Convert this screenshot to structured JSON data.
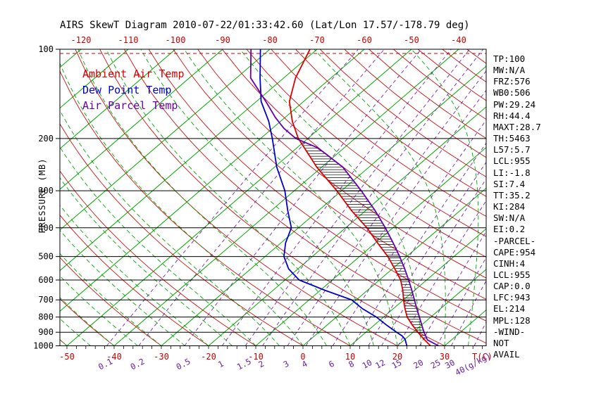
{
  "title": "AIRS SkewT Diagram 2010-07-22/01:33:42.60 (Lat/Lon 17.57/-178.79 deg)",
  "legend": [
    {
      "label": "Ambient Air Temp",
      "color": "#dd0000"
    },
    {
      "label": "Dew Point Temp",
      "color": "#0000cc"
    },
    {
      "label": "Air Parcel Temp",
      "color": "#6600aa"
    }
  ],
  "stats": [
    "TP:100",
    "MW:N/A",
    "FRZ:576",
    "WB0:506",
    "PW:29.24",
    "RH:44.4",
    "MAXT:28.7",
    "TH:5463",
    "L57:5.7",
    "LCL:955",
    "LI:-1.8",
    "SI:7.4",
    "TT:35.2",
    "KI:284",
    "SW:N/A",
    "EI:0.2",
    "-PARCEL-",
    "CAPE:954",
    "CINH:4",
    "LCL:955",
    "CAP:0.0",
    "LFC:943",
    "EL:214",
    "MPL:128",
    "-WIND-",
    "NOT",
    "AVAIL"
  ],
  "chart_data": {
    "type": "skewt",
    "pressure_axis": {
      "label": "PRESSURE (MB)",
      "ticks": [
        100,
        200,
        300,
        400,
        500,
        600,
        700,
        800,
        900,
        1000
      ],
      "range": [
        100,
        1000
      ],
      "scale": "log"
    },
    "temp_axis": {
      "label": "T(C)",
      "top_ticks": [
        -120,
        -110,
        -100,
        -90,
        -80,
        -70,
        -60,
        -50,
        -40
      ],
      "bottom_ticks": [
        -50,
        -40,
        -30,
        -20,
        -10,
        0,
        10,
        20,
        30
      ],
      "skewed": true
    },
    "mixing_ratio_axis": {
      "unit": "(g/kg)",
      "ticks": [
        0.1,
        0.2,
        0.5,
        1,
        1.5,
        2,
        3,
        4,
        6,
        8,
        10,
        12,
        15,
        20,
        25,
        30,
        40
      ]
    },
    "grid": {
      "isotherm_step_c": 10,
      "dry_adiabat_theta_c": {
        "min": -60,
        "max": 200,
        "step": 10
      },
      "moist_adiabat_start_c": {
        "min": -60,
        "max": 40,
        "step": 5
      }
    },
    "colors": {
      "isotherm": "#00a800",
      "moist_adiabat": "#00a800",
      "dry_adiabat": "#cc1111",
      "mixing_ratio": "#7a22b2",
      "pressure_line": "#000000",
      "top_dashed_line": "#cc0000",
      "hatch": "#000000",
      "axis_red": "#cc0000",
      "axis_violet": "#6a1fa0"
    },
    "series": [
      {
        "name": "Ambient Air Temp",
        "color": "#dd0000",
        "points": [
          [
            1000,
            27
          ],
          [
            950,
            24
          ],
          [
            925,
            22.5
          ],
          [
            900,
            21
          ],
          [
            850,
            18
          ],
          [
            800,
            15
          ],
          [
            750,
            12.5
          ],
          [
            700,
            10
          ],
          [
            650,
            7.5
          ],
          [
            600,
            4.5
          ],
          [
            550,
            0.5
          ],
          [
            500,
            -4
          ],
          [
            450,
            -9.5
          ],
          [
            400,
            -15.5
          ],
          [
            350,
            -23
          ],
          [
            300,
            -31
          ],
          [
            250,
            -41
          ],
          [
            200,
            -52
          ],
          [
            175,
            -57.5
          ],
          [
            150,
            -63
          ],
          [
            125,
            -67.5
          ],
          [
            100,
            -71.5
          ]
        ]
      },
      {
        "name": "Dew Point Temp",
        "color": "#0000cc",
        "points": [
          [
            1000,
            22
          ],
          [
            950,
            20
          ],
          [
            925,
            18.5
          ],
          [
            900,
            16.5
          ],
          [
            850,
            12.5
          ],
          [
            800,
            8.5
          ],
          [
            750,
            3.5
          ],
          [
            700,
            -1
          ],
          [
            650,
            -9
          ],
          [
            600,
            -17
          ],
          [
            550,
            -22
          ],
          [
            500,
            -26
          ],
          [
            450,
            -29
          ],
          [
            400,
            -31.5
          ],
          [
            350,
            -36.5
          ],
          [
            300,
            -42
          ],
          [
            250,
            -49.5
          ],
          [
            200,
            -57.5
          ],
          [
            175,
            -62.5
          ],
          [
            150,
            -69
          ],
          [
            125,
            -75
          ],
          [
            100,
            -82
          ]
        ]
      },
      {
        "name": "Air Parcel Temp",
        "color": "#6600aa",
        "points": [
          [
            1000,
            28.7
          ],
          [
            955,
            24.9
          ],
          [
            900,
            22.3
          ],
          [
            850,
            20
          ],
          [
            800,
            17.6
          ],
          [
            750,
            15
          ],
          [
            700,
            12.3
          ],
          [
            650,
            9.4
          ],
          [
            600,
            6.2
          ],
          [
            550,
            2.6
          ],
          [
            500,
            -1.5
          ],
          [
            450,
            -6.2
          ],
          [
            400,
            -11.6
          ],
          [
            350,
            -18
          ],
          [
            300,
            -25.8
          ],
          [
            250,
            -35.5
          ],
          [
            225,
            -42.5
          ],
          [
            214,
            -46
          ],
          [
            200,
            -52.5
          ],
          [
            185,
            -57.5
          ],
          [
            170,
            -62
          ],
          [
            150,
            -68
          ],
          [
            125,
            -77
          ],
          [
            100,
            -84
          ]
        ]
      }
    ],
    "hatch": {
      "between": [
        0,
        2
      ],
      "p_min": 195,
      "p_max": 943
    }
  }
}
